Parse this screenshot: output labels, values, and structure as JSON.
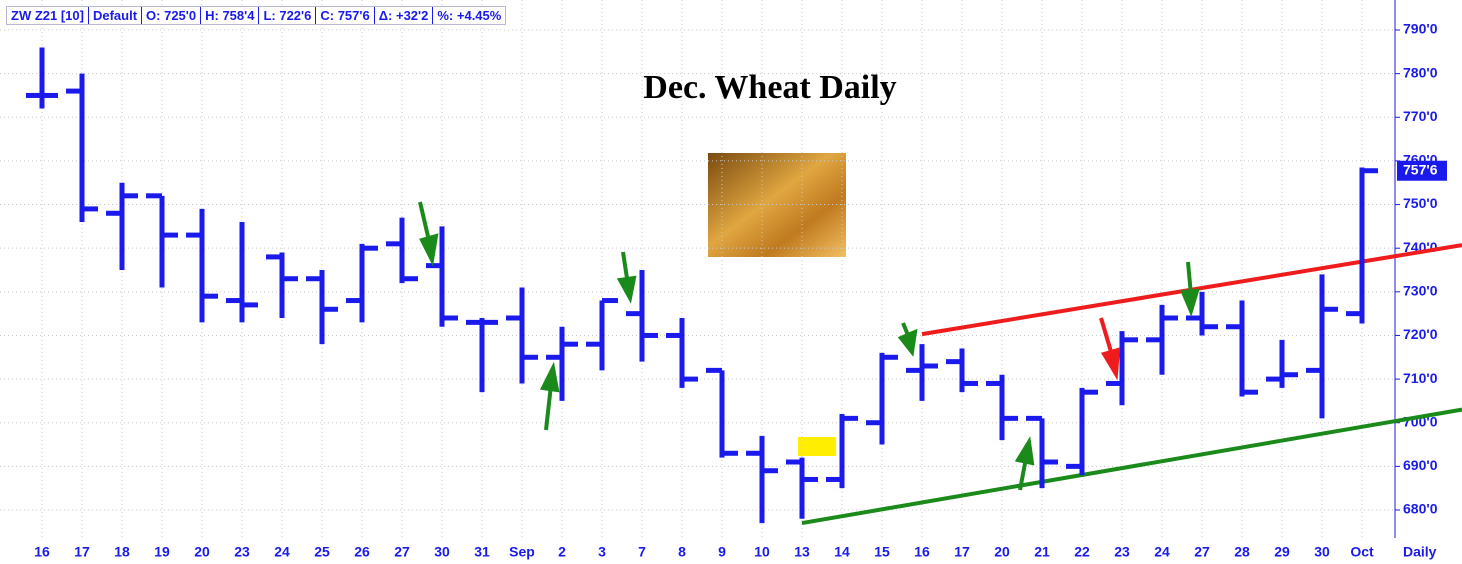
{
  "header": {
    "items": [
      "ZW Z21 [10]",
      "Default",
      "O: 725'0",
      "H: 758'4",
      "L: 722'6",
      "C: 757'6",
      "Δ: +32'2",
      "%: +4.45%"
    ]
  },
  "chart_data": {
    "type": "ohlc",
    "title": "Dec. Wheat Daily",
    "color": "#1a1aec",
    "categories": [
      "16",
      "17",
      "18",
      "19",
      "20",
      "23",
      "24",
      "25",
      "26",
      "27",
      "30",
      "31",
      "Sep",
      "2",
      "3",
      "7",
      "8",
      "9",
      "10",
      "13",
      "14",
      "15",
      "16",
      "17",
      "20",
      "21",
      "22",
      "23",
      "24",
      "27",
      "28",
      "29",
      "30",
      "Oct"
    ],
    "open": [
      775,
      776,
      748,
      752,
      743,
      728,
      738,
      733,
      728,
      741,
      736,
      723,
      724,
      715,
      718,
      725,
      720,
      712,
      693,
      691,
      687,
      700,
      712,
      714,
      709,
      701,
      690,
      709,
      719,
      724,
      722,
      710,
      712,
      725
    ],
    "high": [
      786,
      780,
      755,
      752,
      749,
      746,
      739,
      735,
      741,
      747,
      745,
      724,
      731,
      722,
      728,
      735,
      724,
      712,
      697,
      692,
      702,
      716,
      718,
      717,
      711,
      701,
      708,
      721,
      727,
      730,
      728,
      719,
      734,
      758.5
    ],
    "low": [
      772,
      746,
      735,
      731,
      723,
      723,
      724,
      718,
      723,
      732,
      722,
      707,
      709,
      705,
      712,
      714,
      708,
      692,
      677,
      678,
      685,
      695,
      705,
      707,
      696,
      685,
      688,
      704,
      711,
      720,
      706,
      708,
      701,
      722.75
    ],
    "close": [
      775,
      749,
      752,
      743,
      729,
      727,
      733,
      726,
      740,
      733,
      724,
      723,
      715,
      718,
      728,
      720,
      710,
      693,
      689,
      687,
      701,
      715,
      713,
      709,
      701,
      691,
      707,
      719,
      724,
      722,
      707,
      711,
      726,
      757.75
    ],
    "ylim": [
      675,
      795
    ],
    "yticks": [
      {
        "value": 680,
        "label": "680'0"
      },
      {
        "value": 690,
        "label": "690'0"
      },
      {
        "value": 700,
        "label": "700'0"
      },
      {
        "value": 710,
        "label": "710'0"
      },
      {
        "value": 720,
        "label": "720'0"
      },
      {
        "value": 730,
        "label": "730'0"
      },
      {
        "value": 740,
        "label": "740'0"
      },
      {
        "value": 750,
        "label": "750'0"
      },
      {
        "value": 760,
        "label": "760'0"
      },
      {
        "value": 770,
        "label": "770'0"
      },
      {
        "value": 780,
        "label": "780'0"
      },
      {
        "value": 790,
        "label": "790'0"
      }
    ],
    "last_price": {
      "value": 757.75,
      "label": "757'6"
    },
    "period_label": "Daily",
    "grid": true,
    "trendlines": [
      {
        "color": "#ee1c1c",
        "x": [
          22,
          35.5
        ],
        "values": [
          720.3,
          740.7
        ]
      },
      {
        "color": "#1a8a1a",
        "x": [
          19,
          35.5
        ],
        "values": [
          677,
          703
        ]
      }
    ]
  }
}
